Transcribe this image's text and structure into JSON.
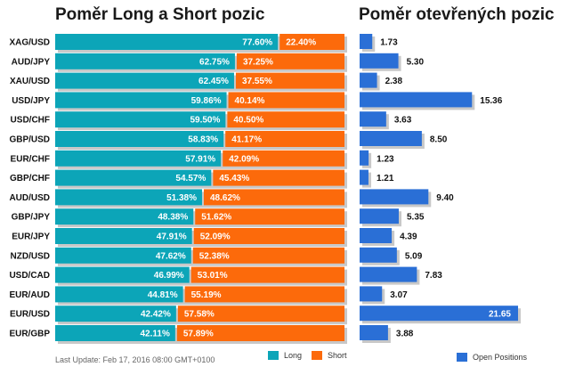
{
  "chart_data": [
    {
      "type": "bar",
      "orientation": "horizontal",
      "stacked": true,
      "title": "Poměr Long a Short pozic",
      "categories": [
        "XAG/USD",
        "AUD/JPY",
        "XAU/USD",
        "USD/JPY",
        "USD/CHF",
        "GBP/USD",
        "EUR/CHF",
        "GBP/CHF",
        "AUD/USD",
        "GBP/JPY",
        "EUR/JPY",
        "NZD/USD",
        "USD/CAD",
        "EUR/AUD",
        "EUR/USD",
        "EUR/GBP"
      ],
      "series": [
        {
          "name": "Long",
          "color": "#0ca5b8",
          "values": [
            77.6,
            62.75,
            62.45,
            59.86,
            59.5,
            58.83,
            57.91,
            54.57,
            51.38,
            48.38,
            47.91,
            47.62,
            46.99,
            44.81,
            42.42,
            42.11
          ],
          "labels": [
            "77.60%",
            "62.75%",
            "62.45%",
            "59.86%",
            "59.50%",
            "58.83%",
            "57.91%",
            "54.57%",
            "51.38%",
            "48.38%",
            "47.91%",
            "47.62%",
            "46.99%",
            "44.81%",
            "42.42%",
            "42.11%"
          ]
        },
        {
          "name": "Short",
          "color": "#fc6a0b",
          "values": [
            22.4,
            37.25,
            37.55,
            40.14,
            40.5,
            41.17,
            42.09,
            45.43,
            48.62,
            51.62,
            52.09,
            52.38,
            53.01,
            55.19,
            57.58,
            57.89
          ],
          "labels": [
            "22.40%",
            "37.25%",
            "37.55%",
            "40.14%",
            "40.50%",
            "41.17%",
            "42.09%",
            "45.43%",
            "48.62%",
            "51.62%",
            "52.09%",
            "52.38%",
            "53.01%",
            "55.19%",
            "57.58%",
            "57.89%"
          ]
        }
      ],
      "xlim": [
        0,
        100
      ],
      "legend": "bottom-right"
    },
    {
      "type": "bar",
      "orientation": "horizontal",
      "title": "Poměr otevřených pozic",
      "categories": [
        "XAG/USD",
        "AUD/JPY",
        "XAU/USD",
        "USD/JPY",
        "USD/CHF",
        "GBP/USD",
        "EUR/CHF",
        "GBP/CHF",
        "AUD/USD",
        "GBP/JPY",
        "EUR/JPY",
        "NZD/USD",
        "USD/CAD",
        "EUR/AUD",
        "EUR/USD",
        "EUR/GBP"
      ],
      "series": [
        {
          "name": "Open Positions",
          "color": "#2a6fd6",
          "values": [
            1.73,
            5.3,
            2.38,
            15.36,
            3.63,
            8.5,
            1.23,
            1.21,
            9.4,
            5.35,
            4.39,
            5.09,
            7.83,
            3.07,
            21.65,
            3.88
          ],
          "labels": [
            "1.73",
            "5.30",
            "2.38",
            "15.36",
            "3.63",
            "8.50",
            "1.23",
            "1.21",
            "9.40",
            "5.35",
            "4.39",
            "5.09",
            "7.83",
            "3.07",
            "21.65",
            "3.88"
          ]
        }
      ],
      "xlim": [
        0,
        21.65
      ],
      "legend": "bottom"
    }
  ],
  "footer": {
    "last_update": "Last Update: Feb 17, 2016 08:00 GMT+0100"
  }
}
